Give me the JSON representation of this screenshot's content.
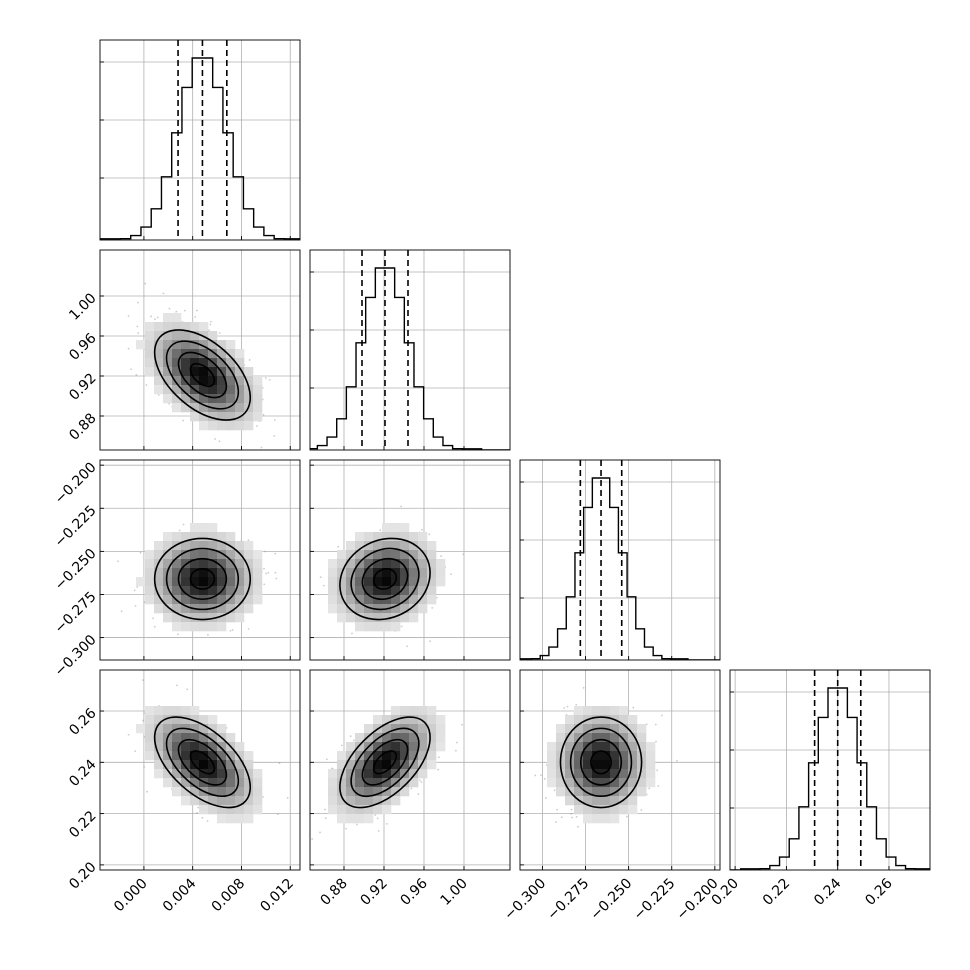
{
  "chart_data": {
    "type": "corner",
    "params": [
      {
        "range": [
          -0.0036,
          0.0128
        ],
        "ticks": [
          0.0,
          0.004,
          0.008,
          0.012
        ],
        "tick_labels": [
          "0.000",
          "0.004",
          "0.008",
          "0.012"
        ],
        "quantiles": [
          0.0028,
          0.0048,
          0.0068
        ],
        "mean": 0.0048,
        "std": 0.002
      },
      {
        "range": [
          0.846,
          1.046
        ],
        "ticks": [
          0.88,
          0.92,
          0.96,
          1.0
        ],
        "tick_labels": [
          "0.88",
          "0.92",
          "0.96",
          "1.00"
        ],
        "quantiles": [
          0.898,
          0.921,
          0.944
        ],
        "mean": 0.921,
        "std": 0.023
      },
      {
        "range": [
          -0.313,
          -0.197
        ],
        "ticks": [
          -0.3,
          -0.275,
          -0.25,
          -0.225,
          -0.2
        ],
        "tick_labels": [
          "−0.300",
          "−0.275",
          "−0.250",
          "−0.225",
          "−0.200"
        ],
        "quantiles": [
          -0.278,
          -0.266,
          -0.254
        ],
        "mean": -0.266,
        "std": 0.012
      },
      {
        "range": [
          0.198,
          0.276
        ],
        "ticks": [
          0.2,
          0.22,
          0.24,
          0.26
        ],
        "tick_labels": [
          "0.20",
          "0.22",
          "0.24",
          "0.26"
        ],
        "quantiles": [
          0.231,
          0.24,
          0.249
        ],
        "mean": 0.24,
        "std": 0.009
      }
    ],
    "correlations": [
      {
        "i": 1,
        "j": 0,
        "rho": -0.5
      },
      {
        "i": 2,
        "j": 0,
        "rho": 0.0
      },
      {
        "i": 2,
        "j": 1,
        "rho": 0.15
      },
      {
        "i": 3,
        "j": 0,
        "rho": -0.55
      },
      {
        "i": 3,
        "j": 1,
        "rho": 0.55
      },
      {
        "i": 3,
        "j": 2,
        "rho": 0.0
      }
    ],
    "histogram_bins": 20,
    "grid": true
  }
}
